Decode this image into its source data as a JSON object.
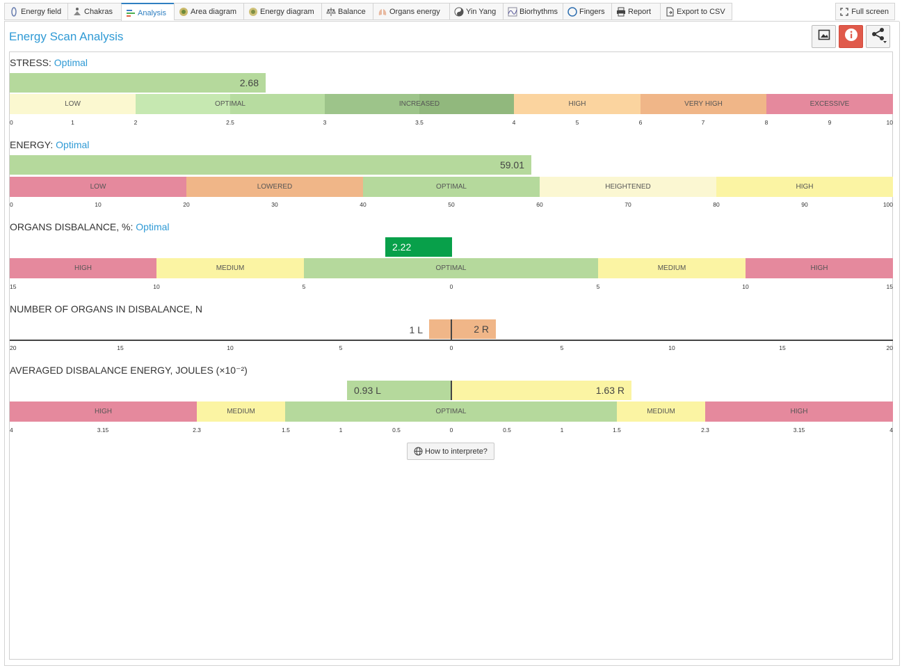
{
  "tabs": [
    {
      "label": "Energy field",
      "icon": "energy-field-icon"
    },
    {
      "label": "Chakras",
      "icon": "chakras-icon"
    },
    {
      "label": "Analysis",
      "icon": "analysis-icon",
      "active": true
    },
    {
      "label": "Area diagram",
      "icon": "area-diagram-icon"
    },
    {
      "label": "Energy diagram",
      "icon": "energy-diagram-icon"
    },
    {
      "label": "Balance",
      "icon": "balance-icon"
    },
    {
      "label": "Organs energy",
      "icon": "organs-energy-icon"
    },
    {
      "label": "Yin Yang",
      "icon": "yin-yang-icon"
    },
    {
      "label": "Biorhythms",
      "icon": "biorhythms-icon"
    },
    {
      "label": "Fingers",
      "icon": "fingers-icon"
    },
    {
      "label": "Report",
      "icon": "printer-icon"
    },
    {
      "label": "Export to CSV",
      "icon": "file-export-icon"
    }
  ],
  "fullscreen_label": "Full screen",
  "page_title": "Energy Scan Analysis",
  "header_buttons": [
    "image-icon",
    "info-icon",
    "share-icon"
  ],
  "colors": {
    "accent": "#2f9ad5",
    "info_button": "#e05a4b"
  },
  "stress": {
    "title": "STRESS:",
    "status": "Optimal",
    "value_label": "2.68",
    "value": 2.68,
    "zones": [
      {
        "label": "LOW",
        "color": "#fbf8d0"
      },
      {
        "label": "OPTIMAL",
        "color": "#c6e8b1"
      },
      {
        "label": "INCREASED",
        "color": "#9dc48a"
      },
      {
        "label": "HIGH",
        "color": "#fbd49f"
      },
      {
        "label": "VERY HIGH",
        "color": "#f0b688"
      },
      {
        "label": "EXCESSIVE",
        "color": "#e5899d"
      }
    ],
    "ticks": [
      "0",
      "1",
      "2",
      "2.5",
      "3",
      "3.5",
      "4",
      "5",
      "6",
      "7",
      "8",
      "9",
      "10"
    ]
  },
  "energy": {
    "title": "ENERGY:",
    "status": "Optimal",
    "value_label": "59.01",
    "value": 59.01,
    "zones": [
      {
        "label": "LOW",
        "color": "#e5899d"
      },
      {
        "label": "LOWERED",
        "color": "#f0b688"
      },
      {
        "label": "OPTIMAL",
        "color": "#b5d99c"
      },
      {
        "label": "HEIGHTENED",
        "color": "#fbf7d2"
      },
      {
        "label": "HIGH",
        "color": "#fbf4a3"
      }
    ],
    "ticks": [
      "0",
      "10",
      "20",
      "30",
      "40",
      "50",
      "60",
      "70",
      "80",
      "90",
      "100"
    ]
  },
  "organs_disbalance": {
    "title": "ORGANS DISBALANCE, %:",
    "status": "Optimal",
    "value_label": "2.22",
    "value": 2.22,
    "zones": [
      {
        "label": "HIGH",
        "color": "#e5899d"
      },
      {
        "label": "MEDIUM",
        "color": "#fbf4a3"
      },
      {
        "label": "OPTIMAL",
        "color": "#b5d99c"
      },
      {
        "label": "MEDIUM",
        "color": "#fbf4a3"
      },
      {
        "label": "HIGH",
        "color": "#e5899d"
      }
    ],
    "ticks": [
      "15",
      "10",
      "5",
      "0",
      "5",
      "10",
      "15"
    ]
  },
  "organs_count": {
    "title": "NUMBER OF ORGANS IN DISBALANCE, N",
    "left_label": "1 L",
    "left_value": 1,
    "right_label": "2 R",
    "right_value": 2,
    "ticks": [
      "20",
      "15",
      "10",
      "5",
      "0",
      "5",
      "10",
      "15",
      "20"
    ]
  },
  "avg_energy": {
    "title": "AVERAGED DISBALANCE ENERGY, JOULES (×10⁻²)",
    "left_label": "0.93 L",
    "left_value": 0.93,
    "right_label": "1.63 R",
    "right_value": 1.63,
    "zones": [
      {
        "label": "HIGH",
        "color": "#e5899d"
      },
      {
        "label": "MEDIUM",
        "color": "#fbf4a3"
      },
      {
        "label": "OPTIMAL",
        "color": "#b5d99c"
      },
      {
        "label": "MEDIUM",
        "color": "#fbf4a3"
      },
      {
        "label": "HIGH",
        "color": "#e5899d"
      }
    ],
    "ticks": [
      "4",
      "3.15",
      "2.3",
      "1.5",
      "1",
      "0.5",
      "0",
      "0.5",
      "1",
      "1.5",
      "2.3",
      "3.15",
      "4"
    ]
  },
  "how_to_label": "How to interprete?"
}
